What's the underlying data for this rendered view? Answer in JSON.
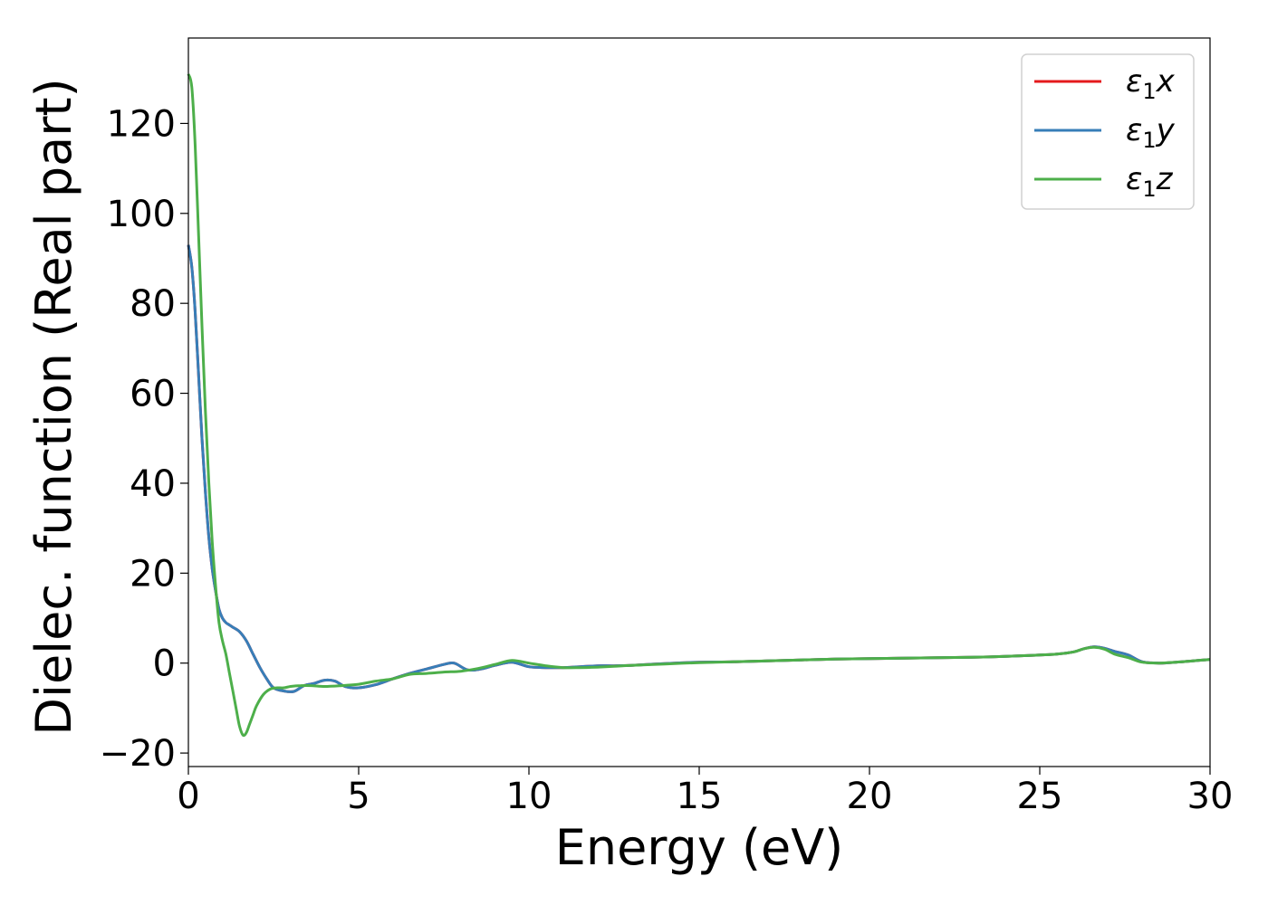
{
  "chart_data": {
    "type": "line",
    "title": "",
    "xlabel": "Energy (eV)",
    "ylabel": "Dielec. function (Real part)",
    "xlim": [
      0,
      30
    ],
    "ylim": [
      -23,
      139
    ],
    "xticks": [
      0,
      5,
      10,
      15,
      20,
      25,
      30
    ],
    "xtick_labels": [
      "0",
      "5",
      "10",
      "15",
      "20",
      "25",
      "30"
    ],
    "yticks": [
      -20,
      0,
      20,
      40,
      60,
      80,
      100,
      120
    ],
    "ytick_labels": [
      "−20",
      "0",
      "20",
      "40",
      "60",
      "80",
      "100",
      "120"
    ],
    "grid": false,
    "legend_position": "top-right",
    "series": [
      {
        "name": "ε₁x",
        "legend_main": "ε",
        "legend_sub": "1",
        "legend_tail": "x",
        "color": "#e41a1c",
        "x": [
          0,
          0.1,
          0.2,
          0.3,
          0.4,
          0.5,
          0.6,
          0.7,
          0.8,
          0.9,
          1.0,
          1.1,
          1.2,
          1.3,
          1.5,
          1.7,
          1.9,
          2.1,
          2.3,
          2.5,
          2.8,
          3.1,
          3.4,
          3.7,
          4.0,
          4.3,
          4.6,
          5.0,
          5.5,
          6.0,
          6.5,
          7.0,
          7.5,
          7.8,
          8.2,
          8.6,
          9.0,
          9.5,
          10.0,
          10.5,
          11.0,
          11.5,
          12.0,
          12.5,
          13.0,
          14.0,
          15.0,
          16.0,
          17.0,
          18.0,
          19.0,
          20.0,
          21.0,
          22.0,
          23.0,
          24.0,
          25.0,
          25.5,
          26.0,
          26.3,
          26.6,
          26.9,
          27.2,
          27.6,
          28.0,
          28.5,
          29.0,
          29.5,
          30.0
        ],
        "y": [
          93,
          88,
          78,
          64,
          50,
          38,
          28,
          21,
          16,
          12,
          10,
          9,
          8.5,
          8,
          7,
          5,
          2,
          -1,
          -3.5,
          -5.5,
          -6.2,
          -6.3,
          -5,
          -4.5,
          -3.8,
          -4,
          -5.2,
          -5.5,
          -4.8,
          -3.5,
          -2.3,
          -1.3,
          -0.3,
          0,
          -1.5,
          -1.3,
          -0.5,
          0.2,
          -0.8,
          -1,
          -1,
          -0.8,
          -0.6,
          -0.6,
          -0.5,
          -0.1,
          0.2,
          0.3,
          0.5,
          0.7,
          0.9,
          1,
          1.1,
          1.2,
          1.3,
          1.5,
          1.8,
          2,
          2.5,
          3.2,
          3.6,
          3.3,
          2.6,
          1.8,
          0.3,
          0,
          0.2,
          0.5,
          0.8
        ]
      },
      {
        "name": "ε₁y",
        "legend_main": "ε",
        "legend_sub": "1",
        "legend_tail": "y",
        "color": "#377eb8",
        "x": [
          0,
          0.1,
          0.2,
          0.3,
          0.4,
          0.5,
          0.6,
          0.7,
          0.8,
          0.9,
          1.0,
          1.1,
          1.2,
          1.3,
          1.5,
          1.7,
          1.9,
          2.1,
          2.3,
          2.5,
          2.8,
          3.1,
          3.4,
          3.7,
          4.0,
          4.3,
          4.6,
          5.0,
          5.5,
          6.0,
          6.5,
          7.0,
          7.5,
          7.8,
          8.2,
          8.6,
          9.0,
          9.5,
          10.0,
          10.5,
          11.0,
          11.5,
          12.0,
          12.5,
          13.0,
          14.0,
          15.0,
          16.0,
          17.0,
          18.0,
          19.0,
          20.0,
          21.0,
          22.0,
          23.0,
          24.0,
          25.0,
          25.5,
          26.0,
          26.3,
          26.6,
          26.9,
          27.2,
          27.6,
          28.0,
          28.5,
          29.0,
          29.5,
          30.0
        ],
        "y": [
          93,
          88,
          78,
          64,
          50,
          38,
          28,
          21,
          16,
          12,
          10,
          9,
          8.5,
          8,
          7,
          5,
          2,
          -1,
          -3.5,
          -5.5,
          -6.2,
          -6.3,
          -5,
          -4.5,
          -3.8,
          -4,
          -5.2,
          -5.5,
          -4.8,
          -3.5,
          -2.3,
          -1.3,
          -0.3,
          0,
          -1.5,
          -1.3,
          -0.5,
          0.2,
          -0.8,
          -1,
          -1,
          -0.8,
          -0.6,
          -0.6,
          -0.5,
          -0.1,
          0.2,
          0.3,
          0.5,
          0.7,
          0.9,
          1,
          1.1,
          1.2,
          1.3,
          1.5,
          1.8,
          2,
          2.5,
          3.2,
          3.6,
          3.3,
          2.6,
          1.8,
          0.3,
          0,
          0.2,
          0.5,
          0.8
        ]
      },
      {
        "name": "ε₁z",
        "legend_main": "ε",
        "legend_sub": "1",
        "legend_tail": "z",
        "color": "#4daf4a",
        "x": [
          0,
          0.1,
          0.2,
          0.3,
          0.4,
          0.5,
          0.6,
          0.7,
          0.8,
          0.9,
          1.0,
          1.1,
          1.2,
          1.3,
          1.4,
          1.5,
          1.6,
          1.7,
          1.8,
          1.9,
          2.0,
          2.2,
          2.4,
          2.6,
          2.8,
          3.0,
          3.3,
          3.6,
          4.0,
          4.5,
          5.0,
          5.5,
          6.0,
          6.5,
          7.0,
          7.5,
          8.0,
          8.5,
          9.0,
          9.5,
          10.0,
          10.5,
          11.0,
          11.5,
          12.0,
          12.5,
          13.0,
          14.0,
          15.0,
          16.0,
          17.0,
          18.0,
          19.0,
          20.0,
          21.0,
          22.0,
          23.0,
          24.0,
          25.0,
          25.5,
          26.0,
          26.3,
          26.6,
          26.9,
          27.2,
          27.6,
          28.0,
          28.5,
          29.0,
          29.5,
          30.0
        ],
        "y": [
          131,
          128,
          115,
          95,
          75,
          56,
          40,
          27,
          17,
          9,
          5,
          2,
          -2,
          -6,
          -10,
          -14,
          -16,
          -15.5,
          -13.5,
          -11.5,
          -9.5,
          -7,
          -5.8,
          -5.5,
          -5.5,
          -5.2,
          -5,
          -5,
          -5.2,
          -5,
          -4.7,
          -4,
          -3.5,
          -2.5,
          -2.3,
          -2,
          -1.8,
          -1.2,
          -0.3,
          0.6,
          0,
          -0.6,
          -1,
          -1,
          -0.9,
          -0.7,
          -0.5,
          -0.2,
          0.1,
          0.3,
          0.5,
          0.7,
          0.9,
          1,
          1.1,
          1.2,
          1.3,
          1.5,
          1.8,
          2,
          2.5,
          3.2,
          3.5,
          3.1,
          2,
          1.2,
          0.2,
          0,
          0.2,
          0.5,
          0.8
        ]
      }
    ]
  }
}
